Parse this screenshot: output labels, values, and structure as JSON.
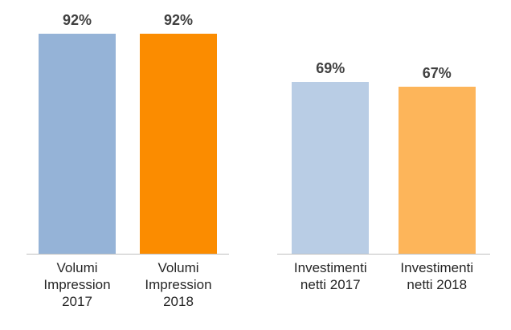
{
  "chart_data": [
    {
      "type": "bar",
      "categories": [
        "Volumi Impression 2017",
        "Volumi Impression 2018"
      ],
      "values": [
        92,
        92
      ],
      "value_labels": [
        "92%",
        "92%"
      ],
      "colors": [
        "#95b3d7",
        "#fb8c00"
      ],
      "ylim": [
        0,
        100
      ]
    },
    {
      "type": "bar",
      "categories": [
        "Investimenti netti 2017",
        "Investimenti netti 2018"
      ],
      "values": [
        69,
        67
      ],
      "value_labels": [
        "69%",
        "67%"
      ],
      "colors": [
        "#b9cde5",
        "#fdb55a"
      ],
      "ylim": [
        0,
        100
      ]
    }
  ]
}
